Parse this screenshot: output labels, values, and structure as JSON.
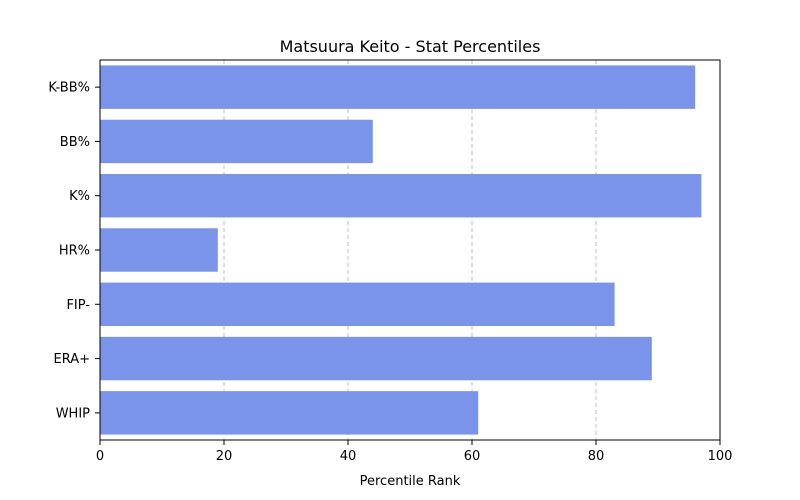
{
  "chart_data": {
    "type": "bar",
    "orientation": "horizontal",
    "title": "Matsuura Keito - Stat Percentiles",
    "xlabel": "Percentile Rank",
    "ylabel": "",
    "categories": [
      "K-BB%",
      "BB%",
      "K%",
      "HR%",
      "FIP-",
      "ERA+",
      "WHIP"
    ],
    "values": [
      96,
      44,
      97,
      19,
      83,
      89,
      61
    ],
    "xlim": [
      0,
      100
    ],
    "xticks": [
      "0",
      "20",
      "40",
      "60",
      "80",
      "100"
    ],
    "grid": "x-dashed",
    "bar_color": "#7994e8"
  }
}
